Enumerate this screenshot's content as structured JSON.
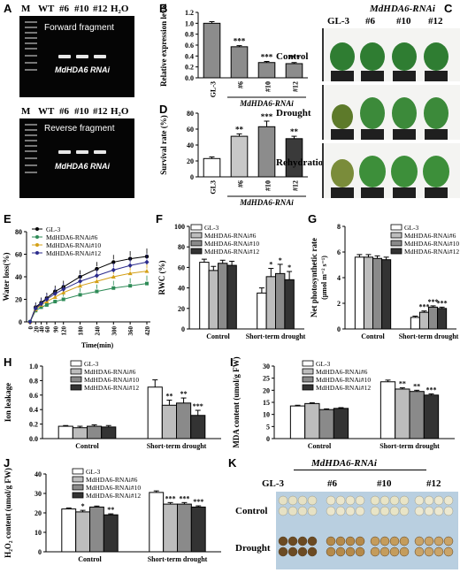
{
  "panels": {
    "A": {
      "label": "A",
      "lane_labels": [
        "M",
        "WT",
        "#6",
        "#10",
        "#12",
        "H₂O"
      ],
      "top_caption": "Forward fragment",
      "top_band_label": "MdHDA6 RNAi",
      "bottom_caption": "Reverse fragment",
      "bottom_band_label": "MdHDA6 RNAi"
    },
    "B": {
      "label": "B"
    },
    "C": {
      "label": "C",
      "header": "MdHDA6-RNAi",
      "columns": [
        "GL-3",
        "#6",
        "#10",
        "#12"
      ],
      "rows": [
        "Control",
        "Drought",
        "Rehydration"
      ]
    },
    "D": {
      "label": "D"
    },
    "E": {
      "label": "E"
    },
    "F": {
      "label": "F"
    },
    "G": {
      "label": "G"
    },
    "H": {
      "label": "H"
    },
    "I": {
      "label": "I"
    },
    "J": {
      "label": "J"
    },
    "K": {
      "label": "K",
      "header": "MdHDA6-RNAi",
      "columns": [
        "GL-3",
        "#6",
        "#10",
        "#12"
      ],
      "rows": [
        "Control",
        "Drought"
      ]
    }
  },
  "chart_data": [
    {
      "id": "B",
      "type": "bar",
      "ylabel": "Relative expression level",
      "categories": [
        "GL-3",
        "#6",
        "#10",
        "#12"
      ],
      "group_label": "MdHDA6-RNAi",
      "values": [
        1.0,
        0.57,
        0.28,
        0.26
      ],
      "errors": [
        0.03,
        0.02,
        0.02,
        0.02
      ],
      "significance": [
        "",
        "***",
        "***",
        "***"
      ],
      "ylim": [
        0,
        1.2
      ],
      "yticks": [
        "0.0",
        "0.2",
        "0.4",
        "0.6",
        "0.8",
        "1.0",
        "1.2"
      ],
      "colors": [
        "#8c8c8c",
        "#8c8c8c",
        "#8c8c8c",
        "#8c8c8c"
      ]
    },
    {
      "id": "D",
      "type": "bar",
      "ylabel": "Survival rate (%)",
      "categories": [
        "GL3",
        "#6",
        "#10",
        "#12"
      ],
      "group_label": "MdHDA6-RNAi",
      "values": [
        23,
        51,
        63,
        48
      ],
      "errors": [
        2,
        3,
        7,
        3
      ],
      "significance": [
        "",
        "**",
        "***",
        "**"
      ],
      "ylim": [
        0,
        80
      ],
      "yticks": [
        "0",
        "20",
        "40",
        "60",
        "80"
      ],
      "colors": [
        "#ffffff",
        "#c8c8c8",
        "#8c8c8c",
        "#3a3a3a"
      ]
    },
    {
      "id": "E",
      "type": "line",
      "xlabel": "Time(min)",
      "ylabel": "Water loss(%)",
      "x": [
        0,
        20,
        40,
        60,
        90,
        120,
        180,
        240,
        300,
        360,
        420
      ],
      "xticks": [
        "0",
        "20",
        "40",
        "60",
        "90",
        "120",
        "180",
        "240",
        "300",
        "360",
        "420"
      ],
      "ylim": [
        0,
        80
      ],
      "yticks": [
        "0",
        "20",
        "40",
        "60",
        "80"
      ],
      "series": [
        {
          "name": "GL-3",
          "color": "#000000",
          "marker": "circle",
          "values": [
            0,
            13,
            17,
            21,
            27,
            31,
            40,
            47,
            53,
            56,
            58
          ]
        },
        {
          "name": "MdHDA6-RNAi#6",
          "color": "#2e8b57",
          "marker": "square",
          "values": [
            0,
            10,
            13,
            15,
            18,
            20,
            24,
            27,
            30,
            32,
            34
          ]
        },
        {
          "name": "MdHDA6-RNAi#10",
          "color": "#d4a017",
          "marker": "triangle",
          "values": [
            0,
            11,
            15,
            18,
            22,
            26,
            32,
            36,
            40,
            43,
            45
          ]
        },
        {
          "name": "MdHDA6-RNAi#12",
          "color": "#2b2b8c",
          "marker": "diamond",
          "values": [
            0,
            12,
            16,
            20,
            25,
            29,
            36,
            41,
            46,
            50,
            53
          ]
        }
      ]
    },
    {
      "id": "F",
      "type": "bar",
      "ylabel": "RWC (%)",
      "categories": [
        "Control",
        "Short-term drought"
      ],
      "series": [
        {
          "name": "GL-3",
          "color": "#ffffff",
          "values": [
            65,
            35
          ],
          "errors": [
            3,
            5
          ],
          "significance": [
            "",
            ""
          ]
        },
        {
          "name": "MdHDA6-RNAi#6",
          "color": "#bdbdbd",
          "values": [
            57,
            51
          ],
          "errors": [
            4,
            8
          ],
          "significance": [
            "",
            "*"
          ]
        },
        {
          "name": "MdHDA6-RNAi#10",
          "color": "#8a8a8a",
          "values": [
            64,
            54
          ],
          "errors": [
            3,
            9
          ],
          "significance": [
            "",
            "*"
          ]
        },
        {
          "name": "MdHDA6-RNAi#12",
          "color": "#333333",
          "values": [
            62,
            48
          ],
          "errors": [
            4,
            8
          ],
          "significance": [
            "",
            "*"
          ]
        }
      ],
      "ylim": [
        0,
        100
      ],
      "yticks": [
        "0",
        "20",
        "40",
        "60",
        "80",
        "100"
      ]
    },
    {
      "id": "G",
      "type": "bar",
      "ylabel": "Net photosynthetic rate",
      "ylabel2": "(μmol m⁻² s⁻¹)",
      "categories": [
        "Control",
        "Short-term drought"
      ],
      "series": [
        {
          "name": "GL-3",
          "color": "#ffffff",
          "values": [
            5.6,
            0.9
          ],
          "errors": [
            0.2,
            0.1
          ],
          "significance": [
            "",
            ""
          ]
        },
        {
          "name": "MdHDA6-RNAi#6",
          "color": "#bdbdbd",
          "values": [
            5.6,
            1.3
          ],
          "errors": [
            0.2,
            0.1
          ],
          "significance": [
            "",
            "***"
          ]
        },
        {
          "name": "MdHDA6-RNAi#10",
          "color": "#8a8a8a",
          "values": [
            5.5,
            1.7
          ],
          "errors": [
            0.2,
            0.1
          ],
          "significance": [
            "",
            "***"
          ]
        },
        {
          "name": "MdHDA6-RNAi#12",
          "color": "#333333",
          "values": [
            5.4,
            1.6
          ],
          "errors": [
            0.2,
            0.1
          ],
          "significance": [
            "",
            "***"
          ]
        }
      ],
      "ylim": [
        0,
        8
      ],
      "yticks": [
        "0",
        "2",
        "4",
        "6",
        "8"
      ]
    },
    {
      "id": "H",
      "type": "bar",
      "ylabel": "Ion leakage",
      "categories": [
        "Control",
        "Short-term drought"
      ],
      "series": [
        {
          "name": "GL-3",
          "color": "#ffffff",
          "values": [
            0.17,
            0.71
          ],
          "errors": [
            0.01,
            0.1
          ],
          "significance": [
            "",
            ""
          ]
        },
        {
          "name": "MdHDA6-RNAi#6",
          "color": "#bdbdbd",
          "values": [
            0.15,
            0.46
          ],
          "errors": [
            0.02,
            0.07
          ],
          "significance": [
            "",
            "**"
          ]
        },
        {
          "name": "MdHDA6-RNAi#10",
          "color": "#8a8a8a",
          "values": [
            0.17,
            0.49
          ],
          "errors": [
            0.02,
            0.07
          ],
          "significance": [
            "",
            "**"
          ]
        },
        {
          "name": "MdHDA6-RNAi#12",
          "color": "#333333",
          "values": [
            0.16,
            0.32
          ],
          "errors": [
            0.02,
            0.07
          ],
          "significance": [
            "",
            "***"
          ]
        }
      ],
      "ylim": [
        0,
        1.0
      ],
      "yticks": [
        "0.0",
        "0.2",
        "0.4",
        "0.6",
        "0.8",
        "1.0"
      ]
    },
    {
      "id": "I",
      "type": "bar",
      "ylabel": "MDA content (umol/g FW)",
      "categories": [
        "Control",
        "Short-term drought"
      ],
      "series": [
        {
          "name": "GL-3",
          "color": "#ffffff",
          "values": [
            13.5,
            23.5
          ],
          "errors": [
            0.3,
            0.7
          ],
          "significance": [
            "",
            ""
          ]
        },
        {
          "name": "MdHDA6-RNAi#6",
          "color": "#bdbdbd",
          "values": [
            14.5,
            20.5
          ],
          "errors": [
            0.3,
            0.5
          ],
          "significance": [
            "",
            "**"
          ]
        },
        {
          "name": "MdHDA6-RNAi#10",
          "color": "#8a8a8a",
          "values": [
            12.0,
            19.5
          ],
          "errors": [
            0.3,
            0.5
          ],
          "significance": [
            "",
            "**"
          ]
        },
        {
          "name": "MdHDA6-RNAi#12",
          "color": "#333333",
          "values": [
            12.5,
            18.0
          ],
          "errors": [
            0.3,
            0.5
          ],
          "significance": [
            "",
            "***"
          ]
        }
      ],
      "ylim": [
        0,
        30
      ],
      "yticks": [
        "0",
        "5",
        "10",
        "15",
        "20",
        "25",
        "30"
      ]
    },
    {
      "id": "J",
      "type": "bar",
      "ylabel": "H₂O₂ content (umol/g FW)",
      "categories": [
        "Control",
        "Short-term drought"
      ],
      "series": [
        {
          "name": "GL-3",
          "color": "#ffffff",
          "values": [
            22,
            30.5
          ],
          "errors": [
            0.5,
            0.8
          ],
          "significance": [
            "",
            ""
          ]
        },
        {
          "name": "MdHDA6-RNAi#6",
          "color": "#bdbdbd",
          "values": [
            20.5,
            24.5
          ],
          "errors": [
            0.8,
            0.8
          ],
          "significance": [
            "*",
            "***"
          ]
        },
        {
          "name": "MdHDA6-RNAi#10",
          "color": "#8a8a8a",
          "values": [
            23,
            24.5
          ],
          "errors": [
            0.5,
            0.8
          ],
          "significance": [
            "",
            "***"
          ]
        },
        {
          "name": "MdHDA6-RNAi#12",
          "color": "#333333",
          "values": [
            19,
            23
          ],
          "errors": [
            0.5,
            0.6
          ],
          "significance": [
            "**",
            "***"
          ]
        }
      ],
      "ylim": [
        0,
        40
      ],
      "yticks": [
        "0",
        "10",
        "20",
        "30",
        "40"
      ]
    }
  ]
}
